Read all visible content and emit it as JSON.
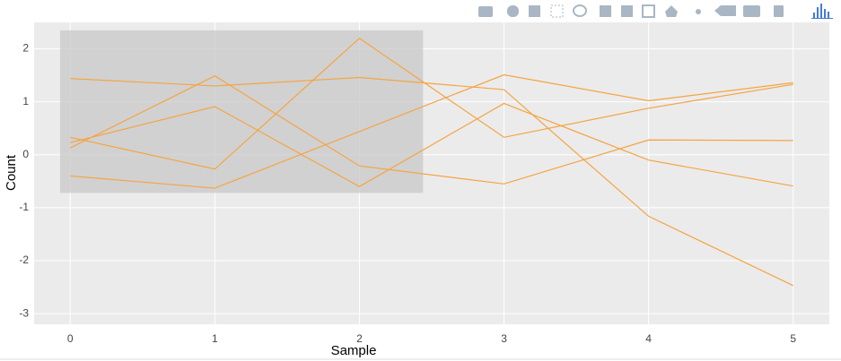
{
  "chart_data": {
    "type": "line",
    "x_label": "Sample",
    "y_label": "Count",
    "x": [
      0,
      1,
      2,
      3,
      4,
      5
    ],
    "series": [
      {
        "color": "#f5a442",
        "values": [
          1.44,
          1.3,
          1.46,
          1.23,
          -1.16,
          -2.47
        ]
      },
      {
        "color": "#f5a442",
        "values": [
          0.33,
          -0.27,
          2.2,
          0.33,
          0.88,
          1.33
        ]
      },
      {
        "color": "#f5a442",
        "values": [
          0.13,
          1.49,
          -0.21,
          -0.55,
          0.28,
          0.27
        ]
      },
      {
        "color": "#f5a442",
        "values": [
          0.23,
          0.91,
          -0.6,
          0.97,
          -0.1,
          -0.59
        ]
      },
      {
        "color": "#f5a442",
        "values": [
          -0.4,
          -0.63,
          0.44,
          1.51,
          1.02,
          1.36
        ]
      }
    ],
    "highlight": {
      "x": [
        -0.07,
        2.44
      ],
      "y": [
        -0.72,
        2.35
      ],
      "color": "#c8c8c8"
    },
    "xlim": [
      -0.25,
      5.25
    ],
    "xticks": [
      0,
      1,
      2,
      3,
      4,
      5
    ],
    "ylim": [
      -3.2,
      2.5
    ],
    "yticks": [
      -3,
      -2,
      -1,
      0,
      1,
      2
    ],
    "grid": true,
    "background": "#ebebeb"
  }
}
